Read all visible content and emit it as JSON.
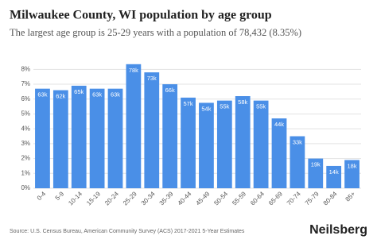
{
  "chart_data": {
    "type": "bar",
    "title": "Milwaukee County, WI population by age group",
    "subtitle": "The largest age group is 25-29 years with a population of 78,432 (8.35%)",
    "categories": [
      "0-4",
      "5-9",
      "10-14",
      "15-19",
      "20-24",
      "25-29",
      "30-34",
      "35-39",
      "40-44",
      "45-49",
      "50-54",
      "55-59",
      "60-64",
      "65-69",
      "70-74",
      "75-79",
      "80-84",
      "85+"
    ],
    "values": [
      6.7,
      6.6,
      6.9,
      6.7,
      6.7,
      8.35,
      7.8,
      7.0,
      6.1,
      5.75,
      5.9,
      6.2,
      5.9,
      4.7,
      3.5,
      2.0,
      1.5,
      1.9
    ],
    "data_labels": [
      "63k",
      "62k",
      "65k",
      "63k",
      "63k",
      "78k",
      "73k",
      "66k",
      "57k",
      "54k",
      "55k",
      "58k",
      "55k",
      "44k",
      "33k",
      "19k",
      "14k",
      "18k"
    ],
    "color": "#4a8fe7",
    "ylim": [
      0,
      8.5
    ],
    "yticks": [
      {
        "value": 0,
        "label": "0%"
      },
      {
        "value": 1,
        "label": "1%"
      },
      {
        "value": 2,
        "label": "2%"
      },
      {
        "value": 3,
        "label": "3%"
      },
      {
        "value": 4,
        "label": "4%"
      },
      {
        "value": 5,
        "label": "5%"
      },
      {
        "value": 6,
        "label": "6%"
      },
      {
        "value": 7,
        "label": "7%"
      },
      {
        "value": 8,
        "label": "8%"
      }
    ],
    "grid": true,
    "source": "Source: U.S. Census Bureau, American Community Survey (ACS) 2017-2021 5-Year Estimates",
    "brand": "Neilsberg"
  }
}
